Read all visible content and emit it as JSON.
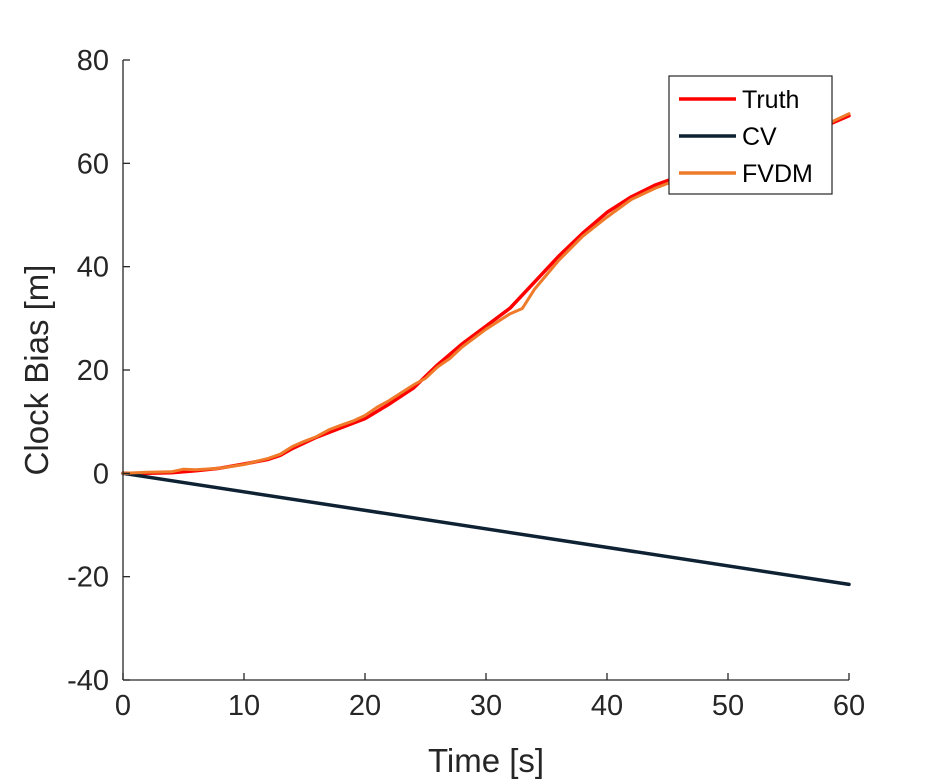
{
  "chart_data": {
    "type": "line",
    "xlabel": "Time [s]",
    "ylabel": "Clock Bias [m]",
    "xlim": [
      0,
      60
    ],
    "ylim": [
      -40,
      80
    ],
    "xticks": [
      0,
      10,
      20,
      30,
      40,
      50,
      60
    ],
    "yticks": [
      -40,
      -20,
      0,
      20,
      40,
      60,
      80
    ],
    "xtick_labels": [
      "0",
      "10",
      "20",
      "30",
      "40",
      "50",
      "60"
    ],
    "ytick_labels": [
      "-40",
      "-20",
      "0",
      "20",
      "40",
      "60",
      "80"
    ],
    "grid": false,
    "box": "left-bottom axes only",
    "legend_position": "top-right",
    "series": [
      {
        "name": "Truth",
        "color": "#ff0000",
        "x": [
          0,
          2,
          4,
          6,
          8,
          10,
          12,
          13,
          14,
          16,
          18,
          20,
          22,
          24,
          26,
          28,
          30,
          32,
          34,
          36,
          38,
          40,
          42,
          44,
          46,
          48,
          50,
          52,
          54,
          56,
          58,
          60
        ],
        "y": [
          0,
          0,
          0.1,
          0.5,
          1,
          1.8,
          2.7,
          3.5,
          4.8,
          7.0,
          8.8,
          10.6,
          13.4,
          16.5,
          21,
          25,
          28.5,
          32,
          37,
          42,
          46.5,
          50.5,
          53.5,
          55.8,
          57.5,
          59,
          60.5,
          62,
          63.5,
          65.2,
          67.2,
          69.2
        ]
      },
      {
        "name": "CV",
        "color": "#0e2234",
        "x": [
          0,
          60
        ],
        "y": [
          0,
          -21.5
        ]
      },
      {
        "name": "FVDM",
        "color": "#ee7a2a",
        "x": [
          0,
          2,
          4,
          5,
          6,
          8,
          10,
          12,
          13,
          14,
          15,
          16,
          17,
          18,
          19,
          20,
          21,
          22,
          23,
          24,
          25,
          26,
          27,
          28,
          30,
          32,
          33,
          34,
          36,
          38,
          40,
          42,
          44,
          46,
          48,
          50,
          52,
          54,
          56,
          58,
          60
        ],
        "y": [
          0,
          0.2,
          0.3,
          0.8,
          0.7,
          1.0,
          1.7,
          2.9,
          3.7,
          5.2,
          6.2,
          7.1,
          8.4,
          9.3,
          10.1,
          11.2,
          12.8,
          14.1,
          15.6,
          17.1,
          18.4,
          20.6,
          22.2,
          24.4,
          27.9,
          30.9,
          31.9,
          35.6,
          41.2,
          45.9,
          49.6,
          53.0,
          55.2,
          57.0,
          58.8,
          60.3,
          62.1,
          63.7,
          65.4,
          67.4,
          69.6
        ]
      }
    ]
  }
}
